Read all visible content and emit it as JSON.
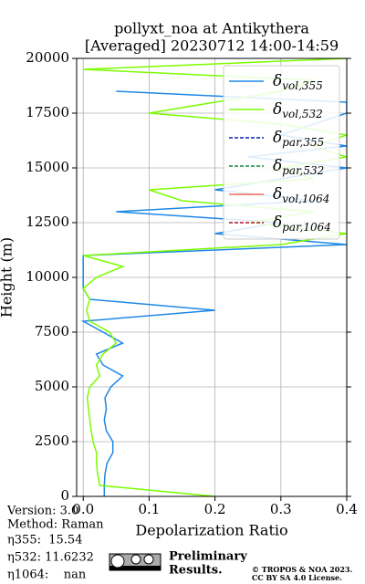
{
  "chart_data": {
    "type": "line",
    "title": "pollyxt_noa at Antikythera",
    "subtitle": "[Averaged] 20230712 14:00-14:59",
    "x_label": "Depolarization Ratio",
    "y_label": "Height (m)",
    "xlim": [
      -0.01,
      0.4
    ],
    "xticks": [
      {
        "value": 0,
        "label": "0.0"
      },
      0.1,
      0.2,
      0.3,
      0.4
    ],
    "ylim": [
      0,
      20000
    ],
    "yticks": [
      0,
      2500,
      5000,
      7500,
      10000,
      12500,
      15000,
      17500,
      20000
    ],
    "grid": true,
    "legend": "upper right",
    "heights": [
      0,
      500,
      1000,
      1500,
      2000,
      2500,
      3000,
      3500,
      4000,
      4500,
      5000,
      5500,
      6000,
      6500,
      7000,
      7500,
      8000,
      8500,
      9000,
      9500,
      10000,
      10500,
      11000,
      11500,
      12000,
      12500,
      13000,
      13500,
      14000,
      14500,
      15000,
      15500,
      16000,
      16500,
      17000,
      17500,
      18000,
      18500,
      19000,
      19500,
      20000
    ],
    "series": [
      {
        "name": "δvol,355",
        "color": "#1e88e5",
        "linestyle": "solid",
        "values": [
          0.032,
          0.032,
          0.033,
          0.036,
          0.045,
          0.045,
          0.035,
          0.032,
          0.035,
          0.033,
          0.042,
          0.06,
          0.03,
          0.02,
          0.06,
          0.03,
          0.0,
          0.2,
          0.01,
          0.0,
          0.0,
          0.0,
          0.0,
          0.4,
          0.2,
          0.3,
          0.05,
          0.35,
          0.2,
          0.3,
          0.4,
          0.25,
          0.4,
          0.3,
          0.35,
          0.4,
          0.4,
          0.05,
          null,
          null,
          null
        ]
      },
      {
        "name": "δvol,532",
        "color": "#7cfc00",
        "linestyle": "solid",
        "values": [
          0.2,
          0.025,
          0.022,
          0.02,
          0.02,
          0.015,
          0.012,
          0.01,
          0.008,
          0.006,
          0.01,
          0.025,
          0.02,
          0.03,
          0.05,
          0.04,
          0.01,
          0.005,
          0.01,
          0.0,
          0.02,
          0.06,
          0.0,
          0.3,
          0.4,
          0.25,
          0.35,
          0.15,
          0.1,
          0.35,
          0.3,
          0.4,
          0.35,
          0.4,
          0.3,
          0.1,
          0.2,
          0.3,
          0.35,
          0.0,
          0.4
        ]
      },
      {
        "name": "δpar,355",
        "color": "#0a1fb5",
        "linestyle": "dashed",
        "values": [
          null,
          null,
          null,
          null,
          null,
          null,
          null,
          null,
          null,
          null,
          null,
          null,
          null,
          null,
          null,
          null,
          null,
          null,
          null,
          null,
          null,
          null,
          null,
          null,
          null,
          null,
          null,
          null,
          null,
          null,
          null,
          null,
          null,
          null,
          null,
          null,
          null,
          null,
          null,
          null,
          null
        ]
      },
      {
        "name": "δpar,532",
        "color": "#0e8a3a",
        "linestyle": "dashed",
        "values": [
          null,
          null,
          null,
          null,
          null,
          null,
          null,
          null,
          null,
          null,
          null,
          null,
          null,
          null,
          null,
          null,
          null,
          null,
          null,
          null,
          null,
          null,
          null,
          null,
          null,
          null,
          null,
          null,
          null,
          null,
          null,
          null,
          null,
          null,
          null,
          null,
          null,
          null,
          null,
          null,
          null
        ]
      },
      {
        "name": "δvol,1064",
        "color": "#f26b5b",
        "linestyle": "solid",
        "values": [
          null,
          null,
          null,
          null,
          null,
          null,
          null,
          null,
          null,
          null,
          null,
          null,
          null,
          null,
          null,
          null,
          null,
          null,
          null,
          null,
          null,
          null,
          null,
          null,
          null,
          null,
          null,
          null,
          null,
          null,
          null,
          null,
          null,
          null,
          null,
          null,
          null,
          null,
          null,
          null,
          null
        ]
      },
      {
        "name": "δpar,1064",
        "color": "#b3122e",
        "linestyle": "dashed",
        "values": [
          null,
          null,
          null,
          null,
          null,
          null,
          null,
          null,
          null,
          null,
          null,
          null,
          null,
          null,
          null,
          null,
          null,
          null,
          null,
          null,
          null,
          null,
          null,
          null,
          null,
          null,
          null,
          null,
          null,
          null,
          null,
          null,
          null,
          null,
          null,
          null,
          null,
          null,
          null,
          null,
          null
        ]
      }
    ],
    "annotations": [
      "Version: 3.0",
      "Method: Raman",
      "η355:  15.54",
      "η532: 11.6232",
      "η1064:    nan"
    ],
    "notice": [
      "Preliminary",
      "Results."
    ],
    "copyright": [
      "© TROPOS & NOA 2023.",
      "CC BY SA 4.0 License."
    ]
  }
}
